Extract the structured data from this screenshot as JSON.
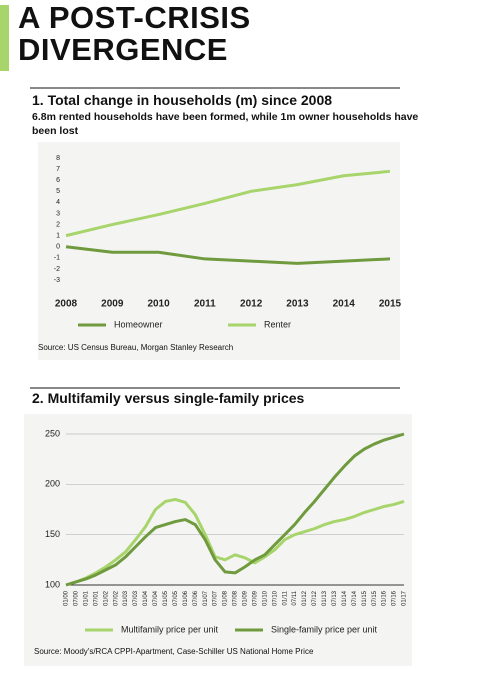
{
  "header": {
    "title_lines": [
      "A POST-CRISIS",
      "DIVERGENCE"
    ]
  },
  "chart_data": [
    {
      "type": "line",
      "title": "1. Total change in households (m) since 2008",
      "subtitle": "6.8m rented households have been formed, while 1m owner households have been lost",
      "categories": [
        "2008",
        "2009",
        "2010",
        "2011",
        "2012",
        "2013",
        "2014",
        "2015"
      ],
      "series": [
        {
          "name": "Homeowner",
          "color": "#6f9a3e",
          "values": [
            0,
            -0.5,
            -0.5,
            -1.1,
            -1.3,
            -1.5,
            -1.3,
            -1.1
          ]
        },
        {
          "name": "Renter",
          "color": "#a8d46c",
          "values": [
            1,
            2,
            2.9,
            3.9,
            5,
            5.6,
            6.4,
            6.8
          ]
        }
      ],
      "ylim": [
        -3,
        8
      ],
      "yticks": [
        -3,
        -2,
        -1,
        0,
        1,
        2,
        3,
        4,
        5,
        6,
        7,
        8
      ],
      "grid": false,
      "legend": "bottom",
      "source": "Source: US Census Bureau, Morgan Stanley Research"
    },
    {
      "type": "line",
      "title": "2. Multifamily versus single-family prices",
      "categories": [
        "01/00",
        "07/00",
        "01/01",
        "07/01",
        "01/02",
        "07/02",
        "01/03",
        "07/03",
        "01/04",
        "07/04",
        "01/05",
        "07/05",
        "01/06",
        "07/06",
        "01/07",
        "07/07",
        "01/08",
        "07/08",
        "01/09",
        "07/09",
        "01/10",
        "07/10",
        "01/11",
        "07/11",
        "01/12",
        "07/12",
        "01/13",
        "07/13",
        "01/14",
        "07/14",
        "01/15",
        "07/15",
        "01/16",
        "07/16",
        "01/17"
      ],
      "series": [
        {
          "name": "Multifamily price per unit",
          "color": "#a8d46c",
          "values": [
            100,
            103,
            107,
            112,
            118,
            125,
            133,
            145,
            158,
            175,
            183,
            185,
            182,
            170,
            150,
            128,
            125,
            130,
            127,
            122,
            128,
            135,
            145,
            150,
            153,
            156,
            160,
            163,
            165,
            168,
            172,
            175,
            178,
            180,
            183
          ]
        },
        {
          "name": "Single-family price per unit",
          "color": "#6f9a3e",
          "values": [
            100,
            103,
            106,
            110,
            115,
            120,
            128,
            138,
            148,
            157,
            160,
            163,
            165,
            160,
            145,
            125,
            113,
            112,
            118,
            125,
            130,
            140,
            150,
            160,
            172,
            183,
            195,
            207,
            218,
            228,
            235,
            240,
            244,
            247,
            250
          ]
        }
      ],
      "ylim": [
        100,
        250
      ],
      "yticks": [
        100,
        150,
        200,
        250
      ],
      "grid": true,
      "legend": "bottom",
      "source": "Source: Moody's/RCA CPPI-Apartment, Case-Schiller US National Home Price"
    }
  ]
}
